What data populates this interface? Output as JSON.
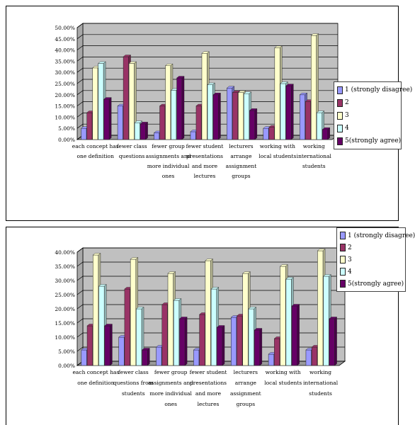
{
  "colors": {
    "plot_wall": "#c0c0c0",
    "floor": "#9a9a9a",
    "gridline": "#000000",
    "series": [
      "#9999ff",
      "#993366",
      "#ffffcc",
      "#ccffff",
      "#660066"
    ]
  },
  "legend_labels": [
    "1 (strongly disagree)",
    "2",
    "3",
    "4",
    "5(strongly agree)"
  ],
  "chart_data": [
    {
      "type": "bar",
      "title": "",
      "xlabel": "",
      "ylabel": "",
      "ylim": [
        0,
        50
      ],
      "yticks": [
        "0.00%",
        "5.00%",
        "10.00%",
        "15.00%",
        "20.00%",
        "25.00%",
        "30.00%",
        "35.00%",
        "40.00%",
        "45.00%",
        "50.00%"
      ],
      "categories": [
        [
          "each concept has",
          "one definition"
        ],
        [
          "fewer class",
          "questions"
        ],
        [
          "fewer group",
          "assignments and",
          "more individual",
          "ones"
        ],
        [
          "fewer student",
          "presentations",
          "and more",
          "lectures"
        ],
        [
          "lecturers",
          "arrange",
          "assignment",
          "groups"
        ],
        [
          "working with",
          "local students"
        ],
        [
          "working",
          "international",
          "students"
        ]
      ],
      "legend": "right",
      "grid": true,
      "series": [
        {
          "name": "1 (strongly disagree)",
          "values": [
            5,
            15,
            3,
            3.5,
            23,
            5,
            20
          ]
        },
        {
          "name": "2",
          "values": [
            12,
            37,
            15,
            15,
            21,
            5.5,
            17
          ]
        },
        {
          "name": "3",
          "values": [
            32,
            34,
            33,
            38.5,
            21,
            41,
            46.5
          ]
        },
        {
          "name": "4",
          "values": [
            34,
            7.5,
            22,
            24.5,
            20.5,
            25,
            12
          ]
        },
        {
          "name": "5(strongly agree)",
          "values": [
            18,
            7,
            27.5,
            20,
            13,
            24,
            4.5
          ]
        }
      ]
    },
    {
      "type": "bar",
      "title": "",
      "xlabel": "",
      "ylabel": "",
      "ylim": [
        0,
        40
      ],
      "yticks": [
        "0.00%",
        "5.00%",
        "10.00%",
        "15.00%",
        "20.00%",
        "25.00%",
        "30.00%",
        "35.00%",
        "40.00%"
      ],
      "categories": [
        [
          "each concept has",
          "one definition"
        ],
        [
          "fewer class",
          "questions from",
          "students"
        ],
        [
          "fewer group",
          "assignments and",
          "more individual",
          "ones"
        ],
        [
          "fewer student",
          "presentations",
          "and more",
          "lectures"
        ],
        [
          "lecturers",
          "arrange",
          "assignment",
          "groups"
        ],
        [
          "working with",
          "local students"
        ],
        [
          "working",
          "international",
          "students"
        ]
      ],
      "legend": "top-right",
      "grid": true,
      "series": [
        {
          "name": "1 (strongly disagree)",
          "values": [
            5.5,
            10,
            6.5,
            5.5,
            17,
            4,
            5.5
          ]
        },
        {
          "name": "2",
          "values": [
            14,
            27,
            21.5,
            18,
            17.5,
            9.5,
            6.5
          ]
        },
        {
          "name": "3",
          "values": [
            39,
            37.5,
            32.5,
            37,
            32.5,
            35,
            40.5
          ]
        },
        {
          "name": "4",
          "values": [
            28,
            20,
            23,
            27,
            20,
            30.5,
            31.5
          ]
        },
        {
          "name": "5(strongly agree)",
          "values": [
            14,
            5.5,
            16.5,
            13.5,
            12.5,
            21,
            16.5
          ]
        }
      ]
    }
  ]
}
